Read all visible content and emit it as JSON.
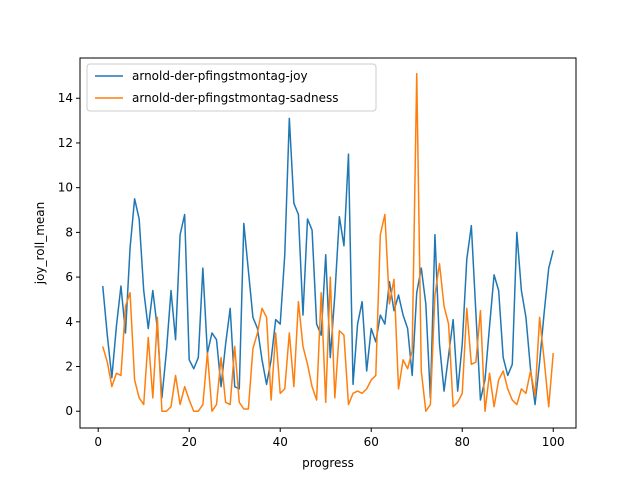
{
  "chart_data": {
    "type": "line",
    "title": "",
    "xlabel": "progress",
    "ylabel": "joy_roll_mean",
    "xlim": [
      -4,
      105
    ],
    "ylim": [
      -0.75,
      15.8
    ],
    "xticks": [
      0,
      20,
      40,
      60,
      80,
      100
    ],
    "yticks": [
      0,
      2,
      4,
      6,
      8,
      10,
      12,
      14
    ],
    "grid": false,
    "legend_position": "top-left",
    "series": [
      {
        "name": "arnold-der-pfingstmontag-joy",
        "color": "#1f77b4",
        "x": [
          1,
          2,
          3,
          4,
          5,
          6,
          7,
          8,
          9,
          10,
          11,
          12,
          13,
          14,
          15,
          16,
          17,
          18,
          19,
          20,
          21,
          22,
          23,
          24,
          25,
          26,
          27,
          28,
          29,
          30,
          31,
          32,
          33,
          34,
          35,
          36,
          37,
          38,
          39,
          40,
          41,
          42,
          43,
          44,
          45,
          46,
          47,
          48,
          49,
          50,
          51,
          52,
          53,
          54,
          55,
          56,
          57,
          58,
          59,
          60,
          61,
          62,
          63,
          64,
          65,
          66,
          67,
          68,
          69,
          70,
          71,
          72,
          73,
          74,
          75,
          76,
          77,
          78,
          79,
          80,
          81,
          82,
          83,
          84,
          85,
          86,
          87,
          88,
          89,
          90,
          91,
          92,
          93,
          94,
          95,
          96,
          97,
          98,
          99,
          100
        ],
        "values": [
          5.6,
          3.4,
          1.5,
          3.8,
          5.6,
          3.5,
          7.3,
          9.5,
          8.6,
          5.4,
          3.7,
          5.4,
          3.7,
          0.6,
          2.7,
          5.4,
          3.2,
          7.9,
          8.8,
          2.3,
          1.9,
          2.4,
          6.4,
          2.6,
          3.5,
          3.2,
          1.1,
          3.0,
          4.6,
          1.1,
          1.0,
          8.4,
          6.3,
          4.2,
          3.7,
          2.3,
          1.2,
          2.3,
          4.1,
          3.9,
          7.0,
          13.1,
          9.3,
          8.8,
          4.3,
          8.6,
          8.1,
          3.9,
          3.4,
          7.0,
          2.4,
          5.2,
          8.7,
          7.4,
          11.5,
          1.2,
          3.9,
          4.9,
          1.8,
          3.7,
          3.1,
          4.3,
          3.9,
          5.8,
          4.5,
          5.2,
          4.3,
          3.7,
          1.6,
          5.3,
          6.4,
          4.8,
          0.6,
          7.9,
          3.0,
          0.9,
          2.5,
          4.1,
          0.9,
          3.0,
          6.8,
          8.3,
          4.4,
          0.5,
          1.4,
          3.8,
          6.1,
          5.4,
          2.4,
          1.6,
          2.1,
          8.0,
          5.4,
          4.2,
          1.9,
          0.3,
          2.2,
          4.4,
          6.4,
          7.2
        ]
      },
      {
        "name": "arnold-der-pfingstmontag-sadness",
        "color": "#ff7f0e",
        "x": [
          1,
          2,
          3,
          4,
          5,
          6,
          7,
          8,
          9,
          10,
          11,
          12,
          13,
          14,
          15,
          16,
          17,
          18,
          19,
          20,
          21,
          22,
          23,
          24,
          25,
          26,
          27,
          28,
          29,
          30,
          31,
          32,
          33,
          34,
          35,
          36,
          37,
          38,
          39,
          40,
          41,
          42,
          43,
          44,
          45,
          46,
          47,
          48,
          49,
          50,
          51,
          52,
          53,
          54,
          55,
          56,
          57,
          58,
          59,
          60,
          61,
          62,
          63,
          64,
          65,
          66,
          67,
          68,
          69,
          70,
          71,
          72,
          73,
          74,
          75,
          76,
          77,
          78,
          79,
          80,
          81,
          82,
          83,
          84,
          85,
          86,
          87,
          88,
          89,
          90,
          91,
          92,
          93,
          94,
          95,
          96,
          97,
          98,
          99,
          100
        ],
        "values": [
          2.9,
          2.2,
          1.1,
          1.7,
          1.6,
          4.7,
          5.3,
          1.4,
          0.6,
          0.3,
          3.3,
          0.6,
          4.2,
          0.0,
          0.0,
          0.2,
          1.6,
          0.3,
          1.1,
          0.5,
          0.0,
          0.0,
          0.3,
          2.6,
          0.0,
          0.3,
          2.4,
          0.4,
          0.3,
          2.9,
          0.4,
          0.1,
          0.1,
          2.8,
          3.5,
          4.6,
          4.2,
          0.5,
          3.5,
          0.8,
          1.0,
          3.5,
          1.1,
          4.9,
          2.9,
          2.1,
          1.1,
          0.5,
          5.3,
          0.4,
          6.0,
          0.6,
          3.6,
          3.4,
          0.3,
          0.8,
          0.9,
          0.8,
          1.0,
          1.4,
          1.6,
          7.9,
          8.8,
          4.8,
          5.9,
          1.0,
          2.3,
          1.9,
          2.7,
          15.1,
          1.8,
          0.0,
          0.3,
          5.2,
          6.6,
          4.7,
          3.9,
          0.2,
          0.4,
          0.8,
          4.6,
          2.1,
          2.2,
          4.5,
          0.0,
          1.7,
          0.2,
          1.4,
          1.8,
          1.0,
          0.5,
          0.3,
          1.0,
          0.8,
          1.8,
          0.7,
          4.2,
          2.3,
          0.2,
          2.6
        ]
      }
    ]
  }
}
